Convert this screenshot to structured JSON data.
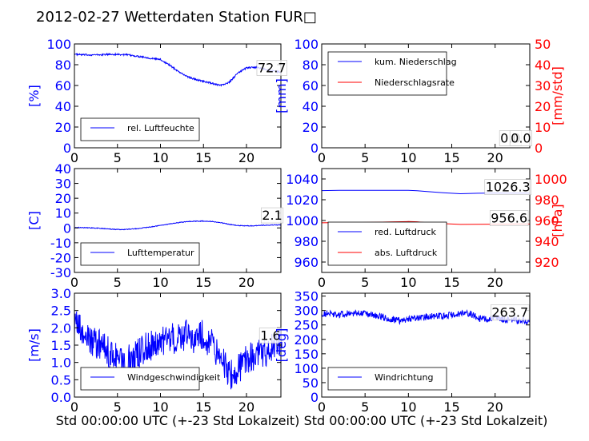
{
  "title": "2012-02-27 Wetterdaten Station FUR□",
  "chart_data": [
    {
      "id": "p1",
      "type": "line",
      "xlim": [
        0,
        24
      ],
      "ylim": [
        0,
        100
      ],
      "xticks": [
        0,
        5,
        10,
        15,
        20
      ],
      "yticks": [
        0,
        20,
        40,
        60,
        80,
        100
      ],
      "ylabel": "[%]",
      "ylabel_color": "#0000ff",
      "tick_color_y": "#0000ff",
      "xlabel": "",
      "legend": {
        "position": "bottom-left"
      },
      "series": [
        {
          "name": "rel. Luftfeuchte",
          "color": "#0000ff",
          "x": [
            0,
            1,
            2,
            3,
            4,
            5,
            6,
            7,
            8,
            9,
            10,
            11,
            12,
            13,
            14,
            15,
            16,
            17,
            18,
            19,
            20,
            21,
            22,
            23,
            24
          ],
          "y": [
            90,
            89.5,
            89.5,
            89.5,
            90,
            90,
            89.5,
            88.5,
            87.5,
            86,
            85,
            80,
            74,
            69,
            66,
            64,
            62,
            60,
            63,
            72,
            77,
            77.5,
            76,
            74,
            72.7
          ],
          "noise": 0.8
        }
      ],
      "annotations": [
        {
          "text": "72.7",
          "x": 21.3,
          "y": 72.7
        }
      ]
    },
    {
      "id": "p2",
      "type": "line",
      "xlim": [
        0,
        24
      ],
      "ylim": [
        0,
        100
      ],
      "xticks": [
        0,
        5,
        10,
        15,
        20
      ],
      "yticks": [
        0,
        20,
        40,
        60,
        80,
        100
      ],
      "ylabel": "[mm]",
      "ylabel_color": "#0000ff",
      "tick_color_y": "#0000ff",
      "y2lim": [
        0,
        50
      ],
      "y2ticks": [
        0,
        10,
        20,
        30,
        40,
        50
      ],
      "y2label": "[mm/std]",
      "y2label_color": "#ff0000",
      "tick_color_y2": "#ff0000",
      "xlabel": "",
      "legend": {
        "position": "top-left"
      },
      "series": [
        {
          "name": "kum. Niederschlag",
          "color": "#0000ff",
          "x": [
            0,
            24
          ],
          "y": [
            0,
            0
          ],
          "noise": 0
        },
        {
          "name": "Niederschlagsrate",
          "color": "#ff0000",
          "x": [
            0,
            24
          ],
          "y": [
            0,
            0
          ],
          "noise": 0,
          "axis": "y2"
        }
      ],
      "annotations": [
        {
          "text": "0.0",
          "x": 20.6,
          "y": 5
        },
        {
          "text": "0.0",
          "x": 21.8,
          "y": 5
        }
      ]
    },
    {
      "id": "p3",
      "type": "line",
      "xlim": [
        0,
        24
      ],
      "ylim": [
        -30,
        40
      ],
      "xticks": [
        0,
        5,
        10,
        15,
        20
      ],
      "yticks": [
        -30,
        -20,
        -10,
        0,
        10,
        20,
        30,
        40
      ],
      "ylabel": "[C]",
      "ylabel_color": "#0000ff",
      "tick_color_y": "#0000ff",
      "xlabel": "",
      "legend": {
        "position": "bottom-left"
      },
      "series": [
        {
          "name": "Lufttemperatur",
          "color": "#0000ff",
          "x": [
            0,
            1,
            2,
            3,
            4,
            5,
            6,
            7,
            8,
            9,
            10,
            11,
            12,
            13,
            14,
            15,
            16,
            17,
            18,
            19,
            20,
            21,
            22,
            23,
            24
          ],
          "y": [
            0.3,
            0.2,
            0,
            -0.3,
            -0.7,
            -1.1,
            -1,
            -0.6,
            0,
            0.8,
            1.7,
            2.6,
            3.5,
            4.2,
            4.5,
            4.6,
            4.4,
            3.6,
            2.4,
            1.6,
            1.4,
            1.5,
            1.8,
            2,
            2.1
          ],
          "noise": 0.25
        }
      ],
      "annotations": [
        {
          "text": "2.1",
          "x": 21.8,
          "y": 5.5
        }
      ]
    },
    {
      "id": "p4",
      "type": "line",
      "xlim": [
        0,
        24
      ],
      "ylim": [
        950,
        1050
      ],
      "xticks": [
        0,
        5,
        10,
        15,
        20
      ],
      "yticks": [
        960,
        980,
        1000,
        1020,
        1040
      ],
      "ylabel": "",
      "ylabel_color": "#0000ff",
      "tick_color_y": "#0000ff",
      "y2lim": [
        910,
        1010
      ],
      "y2ticks": [
        920,
        940,
        960,
        980,
        1000
      ],
      "y2label": "[hPa]",
      "y2label_color": "#ff0000",
      "tick_color_y2": "#ff0000",
      "xlabel": "",
      "legend": {
        "position": "bottom-left"
      },
      "series": [
        {
          "name": "red. Luftdruck",
          "color": "#0000ff",
          "x": [
            0,
            2,
            4,
            6,
            8,
            10,
            11,
            12,
            14,
            16,
            18,
            20,
            22,
            24
          ],
          "y": [
            1028.8,
            1029,
            1029,
            1029,
            1029,
            1029,
            1028.6,
            1028,
            1026.8,
            1025.8,
            1026.2,
            1026.5,
            1026.3,
            1026.3
          ],
          "noise": 0
        },
        {
          "name": "abs. Luftdruck",
          "color": "#ff0000",
          "x": [
            0,
            2,
            4,
            6,
            8,
            10,
            11,
            12,
            14,
            16,
            18,
            20,
            22,
            24
          ],
          "y": [
            957.8,
            958.0,
            958.0,
            958.2,
            958.6,
            959.0,
            958.8,
            958.0,
            957.0,
            956.2,
            956.4,
            956.5,
            956.6,
            956.6
          ],
          "noise": 0,
          "axis": "y2"
        }
      ],
      "annotations": [
        {
          "text": "1026.3",
          "x": 18.9,
          "y": 1028
        },
        {
          "text": "956.6",
          "x": 19.5,
          "y": 998
        }
      ]
    },
    {
      "id": "p5",
      "type": "line",
      "xlim": [
        0,
        24
      ],
      "ylim": [
        0,
        3
      ],
      "xticks": [
        0,
        5,
        10,
        15,
        20
      ],
      "yticks": [
        0,
        0.5,
        1,
        1.5,
        2,
        2.5,
        3
      ],
      "yticklabels": [
        "0.0",
        "0.5",
        "1.0",
        "1.5",
        "2.0",
        "2.5",
        "3.0"
      ],
      "ylabel": "[m/s]",
      "ylabel_color": "#0000ff",
      "tick_color_y": "#0000ff",
      "xlabel": "Std 00:00:00 UTC (+-23 Std Lokalzeit)",
      "legend": {
        "position": "bottom-left"
      },
      "series": [
        {
          "name": "Windgeschwindigkeit",
          "color": "#0000ff",
          "x": [
            0,
            1,
            2,
            3,
            4,
            5,
            6,
            7,
            8,
            9,
            10,
            11,
            12,
            13,
            14,
            15,
            16,
            17,
            18,
            19,
            20,
            21,
            22,
            23,
            24
          ],
          "y": [
            2.2,
            1.8,
            1.6,
            1.5,
            1.3,
            1.1,
            1.0,
            1.2,
            1.4,
            1.5,
            1.6,
            1.7,
            1.7,
            1.8,
            1.7,
            1.8,
            1.5,
            1.2,
            0.6,
            0.8,
            1.1,
            1.2,
            1.3,
            1.4,
            1.6
          ],
          "noise": 0.45
        }
      ],
      "annotations": [
        {
          "text": "1.6",
          "x": 21.6,
          "y": 1.65
        }
      ]
    },
    {
      "id": "p6",
      "type": "line",
      "xlim": [
        0,
        24
      ],
      "ylim": [
        0,
        360
      ],
      "xticks": [
        0,
        5,
        10,
        15,
        20
      ],
      "yticks": [
        0,
        50,
        100,
        150,
        200,
        250,
        300,
        350
      ],
      "ylabel": "[deg]",
      "ylabel_color": "#0000ff",
      "tick_color_y": "#0000ff",
      "xlabel": "Std 00:00:00 UTC (+-23 Std Lokalzeit)",
      "legend": {
        "position": "bottom-left"
      },
      "series": [
        {
          "name": "Windrichtung",
          "color": "#0000ff",
          "x": [
            0,
            1,
            2,
            3,
            4,
            5,
            6,
            7,
            8,
            9,
            10,
            11,
            12,
            13,
            14,
            15,
            16,
            17,
            18,
            19,
            20,
            21,
            22,
            23,
            24
          ],
          "y": [
            290,
            288,
            285,
            290,
            292,
            288,
            283,
            278,
            270,
            265,
            270,
            275,
            278,
            280,
            282,
            285,
            288,
            290,
            275,
            270,
            275,
            270,
            268,
            265,
            263.7
          ],
          "noise": 12
        }
      ],
      "annotations": [
        {
          "text": "263.7",
          "x": 19.6,
          "y": 278
        }
      ]
    }
  ]
}
